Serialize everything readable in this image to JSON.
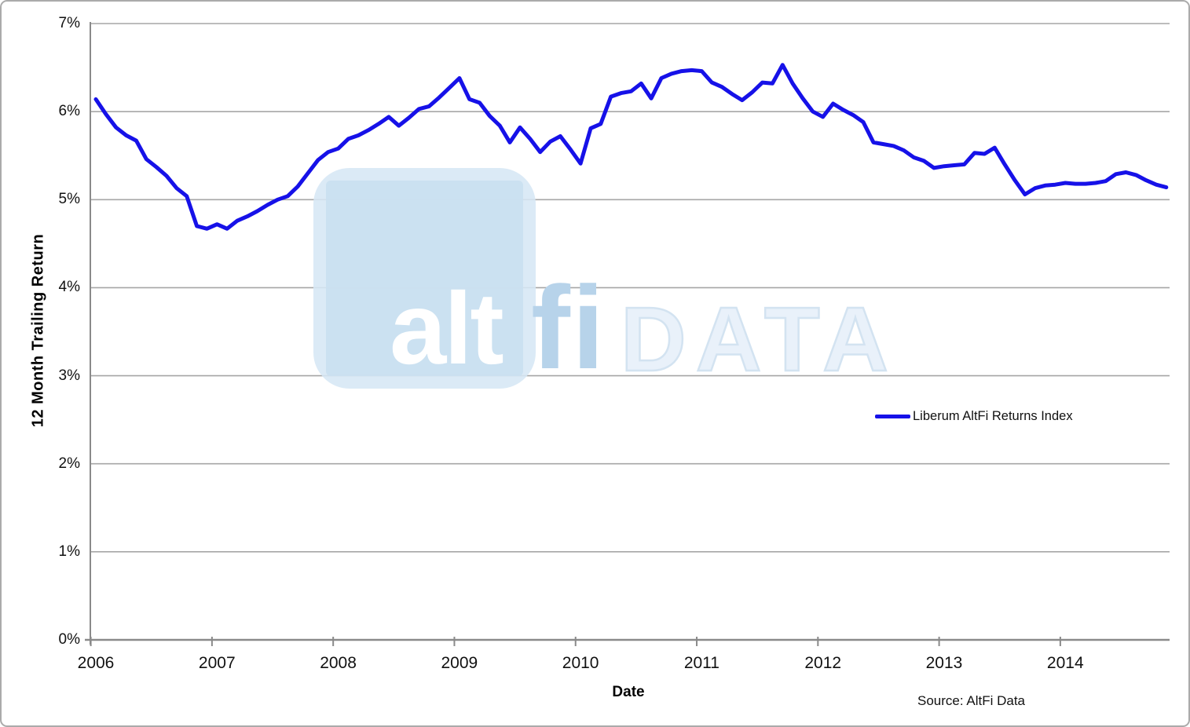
{
  "chart_data": {
    "type": "line",
    "title": "",
    "xlabel": "Date",
    "ylabel": "12 Month Trailing Return",
    "x_tick_labels": [
      "2006",
      "2007",
      "2008",
      "2009",
      "2010",
      "2011",
      "2012",
      "2013",
      "2014"
    ],
    "y_tick_labels": [
      "0%",
      "1%",
      "2%",
      "3%",
      "4%",
      "5%",
      "6%",
      "7%"
    ],
    "ylim": [
      0,
      7
    ],
    "x_start": "2006-01",
    "x_end": "2014-11",
    "frequency": "monthly",
    "grid": "horizontal",
    "legend_position": "middle-right",
    "series": [
      {
        "name": "Liberum AltFi Returns Index",
        "color": "#1611e8",
        "values": [
          6.14,
          5.97,
          5.82,
          5.73,
          5.67,
          5.46,
          5.37,
          5.27,
          5.13,
          5.04,
          4.7,
          4.67,
          4.72,
          4.67,
          4.76,
          4.81,
          4.87,
          4.94,
          5.0,
          5.04,
          5.15,
          5.3,
          5.45,
          5.54,
          5.58,
          5.69,
          5.73,
          5.79,
          5.86,
          5.94,
          5.84,
          5.93,
          6.03,
          6.06,
          6.16,
          6.27,
          6.38,
          6.14,
          6.1,
          5.95,
          5.84,
          5.65,
          5.82,
          5.69,
          5.54,
          5.66,
          5.72,
          5.57,
          5.41,
          5.81,
          5.86,
          6.17,
          6.21,
          6.23,
          6.32,
          6.15,
          6.38,
          6.43,
          6.46,
          6.47,
          6.46,
          6.33,
          6.28,
          6.2,
          6.13,
          6.22,
          6.33,
          6.32,
          6.53,
          6.32,
          6.15,
          6.0,
          5.94,
          6.09,
          6.02,
          5.96,
          5.88,
          5.65,
          5.63,
          5.61,
          5.56,
          5.48,
          5.44,
          5.36,
          5.38,
          5.39,
          5.4,
          5.53,
          5.52,
          5.59,
          5.4,
          5.22,
          5.06,
          5.13,
          5.16,
          5.17,
          5.19,
          5.18,
          5.18,
          5.19,
          5.21,
          5.29,
          5.31,
          5.28,
          5.22,
          5.17,
          5.14
        ]
      }
    ]
  },
  "legend": {
    "label": "Liberum AltFi Returns Index"
  },
  "axis_titles": {
    "x": "Date",
    "y": "12 Month Trailing Return"
  },
  "source_note": "Source: AltFi Data",
  "watermark": {
    "alt": "alt",
    "fi": "fi",
    "data": "DATA"
  },
  "colors": {
    "line": "#1611e8",
    "grid": "#a6a6a6",
    "axis": "#8a8a8a",
    "frame": "#ababab",
    "watermark_tile": "#d6e7f5",
    "watermark_fi": "#b7d3ea",
    "watermark_data_fill": "#e9f1fa"
  }
}
